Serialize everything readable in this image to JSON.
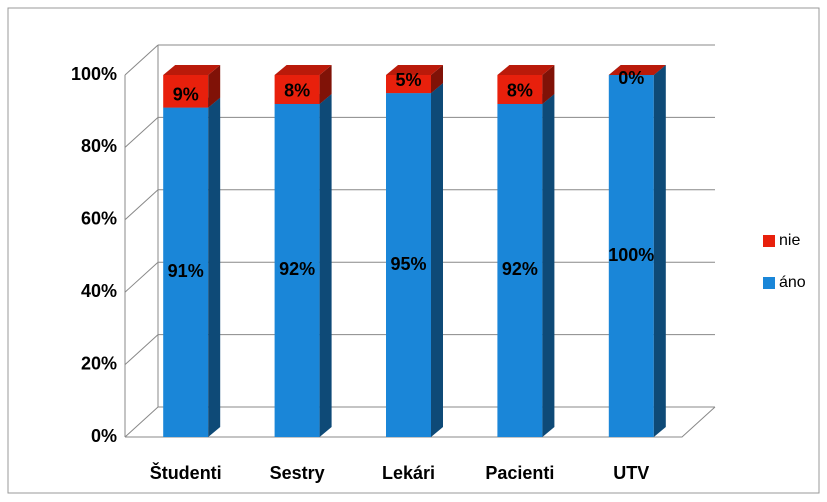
{
  "chart_data": {
    "type": "bar",
    "stacked": true,
    "categories": [
      "Študenti",
      "Sestry",
      "Lekári",
      "Pacienti",
      "UTV"
    ],
    "series": [
      {
        "name": "áno",
        "color": "#1a86d8",
        "values": [
          91,
          92,
          95,
          92,
          100
        ],
        "value_labels": [
          "91%",
          "92%",
          "95%",
          "92%",
          "100%"
        ]
      },
      {
        "name": "nie",
        "color": "#e8200c",
        "values": [
          9,
          8,
          5,
          8,
          0
        ],
        "value_labels": [
          "9%",
          "8%",
          "5%",
          "8%",
          "0%"
        ]
      }
    ],
    "ylim": [
      0,
      100
    ],
    "yticks": [
      {
        "value": 0,
        "label": "0%"
      },
      {
        "value": 20,
        "label": "20%"
      },
      {
        "value": 40,
        "label": "40%"
      },
      {
        "value": 60,
        "label": "60%"
      },
      {
        "value": 80,
        "label": "80%"
      },
      {
        "value": 100,
        "label": "100%"
      }
    ],
    "grid": true,
    "legend": "right"
  }
}
